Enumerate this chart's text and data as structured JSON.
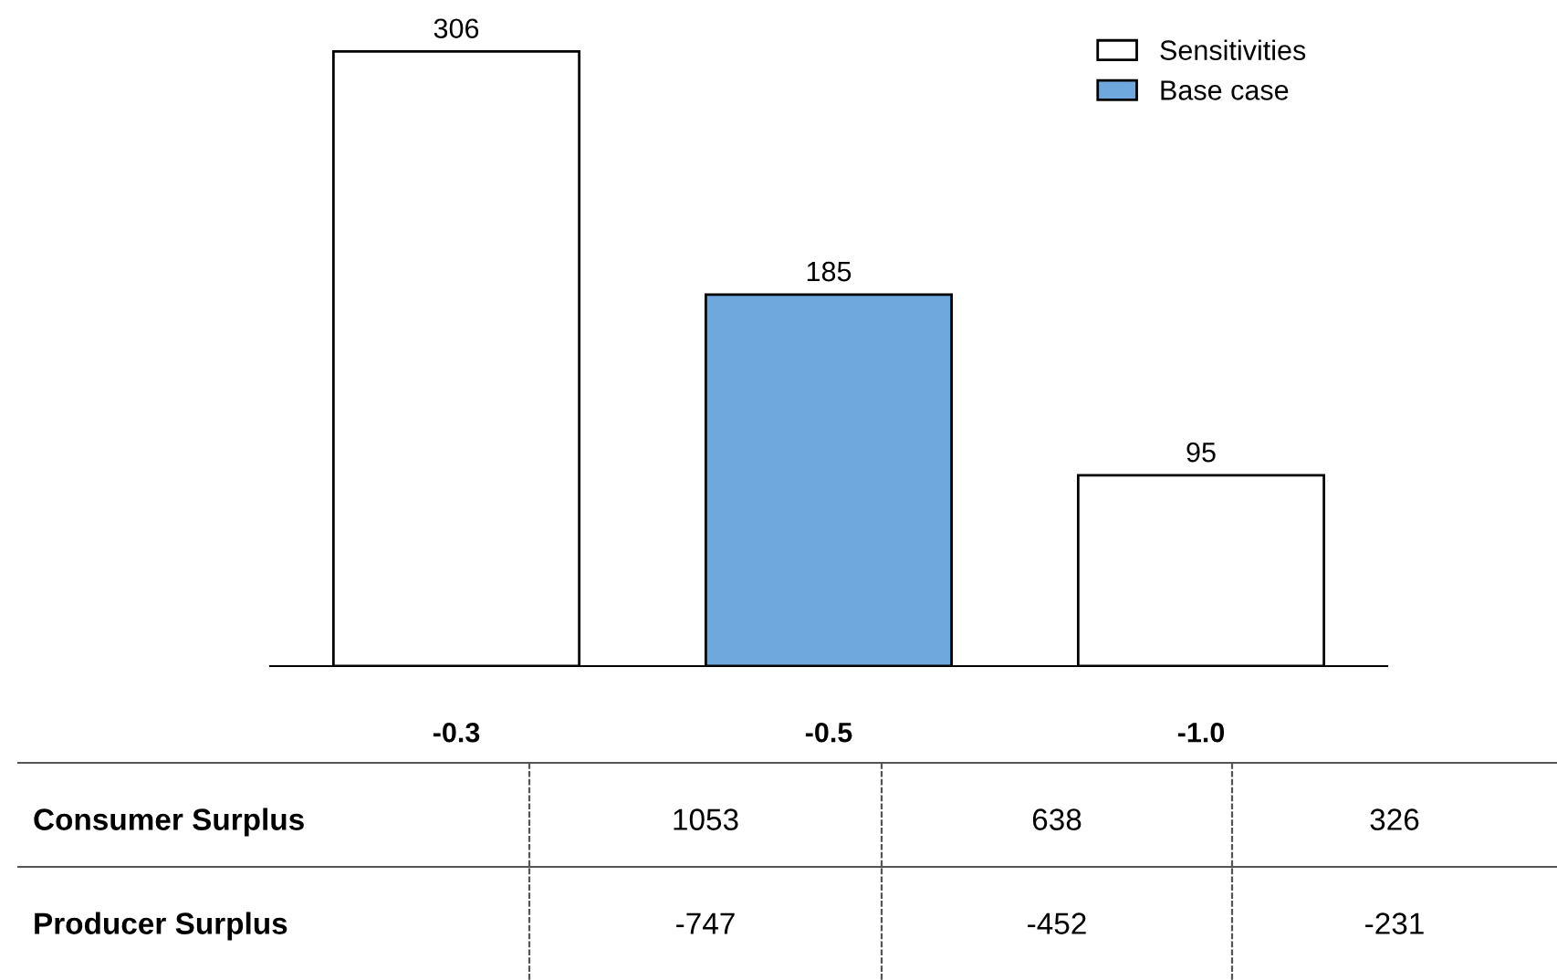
{
  "chart_data": {
    "type": "bar",
    "categories": [
      "-0.3",
      "-0.5",
      "-1.0"
    ],
    "series": [
      {
        "name": "Sensitivities",
        "color": "#ffffff",
        "values": [
          306,
          null,
          95
        ]
      },
      {
        "name": "Base case",
        "color": "#6fa8dc",
        "values": [
          null,
          185,
          null
        ]
      }
    ],
    "data_labels": true,
    "legend": "top right",
    "annotations": [
      "Consumer Surplus",
      "1053",
      "638",
      "326",
      "Producer Surplus",
      "-747",
      "-452",
      "-231"
    ]
  }
}
